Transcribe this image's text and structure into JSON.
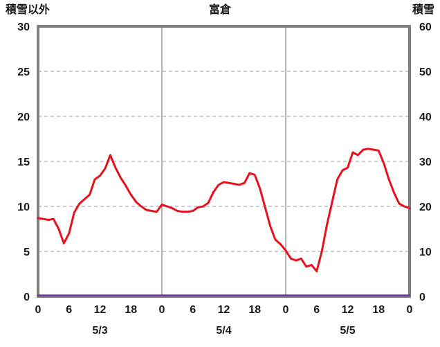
{
  "chart_data": {
    "type": "line",
    "title": "富倉",
    "left_axis": {
      "label": "積雪以外",
      "min": 0,
      "max": 30,
      "tick_step": 5,
      "ticks": [
        0,
        5,
        10,
        15,
        20,
        25,
        30
      ]
    },
    "right_axis": {
      "label": "積雪",
      "min": 0,
      "max": 60,
      "tick_step": 10,
      "ticks": [
        0,
        10,
        20,
        30,
        40,
        50,
        60
      ]
    },
    "x_axis": {
      "hours_total": 72,
      "tick_interval_hours": 6,
      "tick_labels": [
        "0",
        "6",
        "12",
        "18",
        "0",
        "6",
        "12",
        "18",
        "0",
        "6",
        "12",
        "18",
        "0"
      ],
      "day_labels": [
        "5/3",
        "5/4",
        "5/5"
      ],
      "day_label_center_hours": [
        12,
        36,
        60
      ],
      "day_boundary_hours": [
        24,
        48
      ]
    },
    "grid": {
      "horizontal": "dashed",
      "vertical_day_lines": "solid"
    },
    "legend": "none",
    "series": [
      {
        "name": "積雪以外",
        "axis": "left",
        "color": "#e8101c",
        "width": 3,
        "values": [
          8.7,
          8.6,
          8.5,
          8.6,
          7.5,
          5.9,
          7.0,
          9.3,
          10.3,
          10.8,
          11.3,
          13.0,
          13.4,
          14.2,
          15.7,
          14.3,
          13.2,
          12.3,
          11.3,
          10.5,
          10.0,
          9.6,
          9.5,
          9.4,
          10.2,
          10.0,
          9.8,
          9.5,
          9.4,
          9.4,
          9.5,
          9.9,
          10.0,
          10.4,
          11.6,
          12.4,
          12.7,
          12.6,
          12.5,
          12.4,
          12.6,
          13.7,
          13.5,
          12.0,
          9.9,
          7.8,
          6.3,
          5.8,
          5.1,
          4.2,
          4.0,
          4.2,
          3.3,
          3.5,
          2.8,
          5.0,
          8.0,
          10.5,
          13.0,
          14.0,
          14.3,
          16.0,
          15.7,
          16.3,
          16.4,
          16.3,
          16.2,
          14.8,
          13.0,
          11.5,
          10.3,
          10.0,
          9.8
        ]
      },
      {
        "name": "積雪",
        "axis": "right",
        "color": "#7030a0",
        "width": 2.5,
        "constant_value": 0
      }
    ],
    "colors": {
      "border": "#808080",
      "grid": "#9a9a9a",
      "text": "#1a1a1a",
      "background": "#ffffff"
    }
  }
}
